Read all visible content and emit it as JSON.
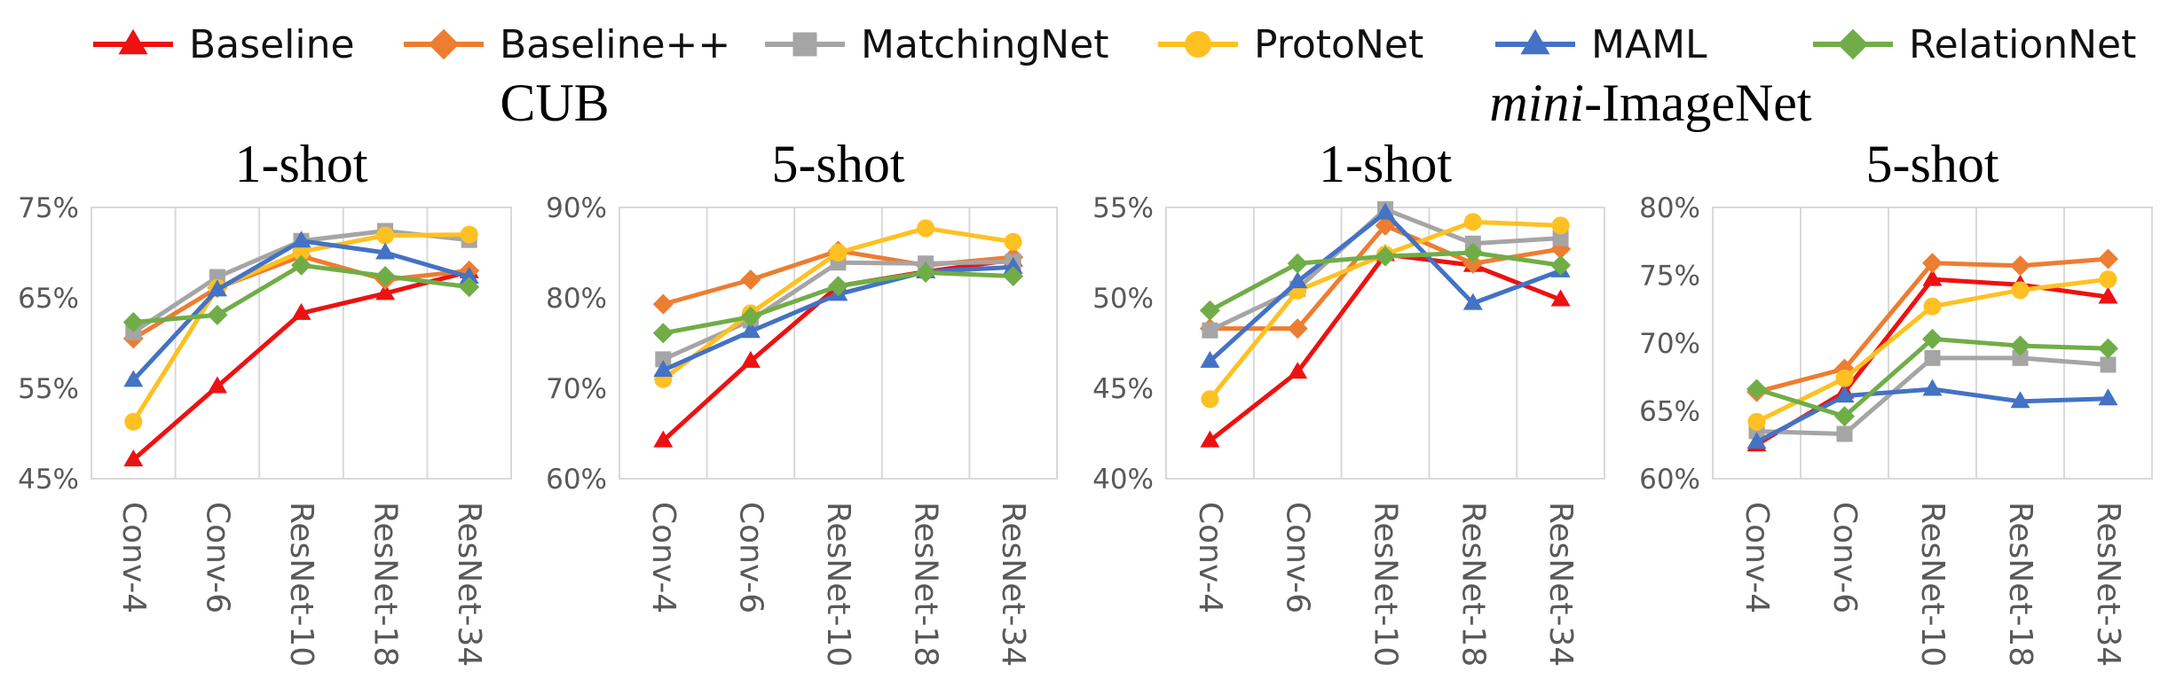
{
  "legend": [
    {
      "name": "Baseline",
      "color": "#ee1111",
      "marker": "triangle"
    },
    {
      "name": "Baseline++",
      "color": "#ed7d31",
      "marker": "diamond"
    },
    {
      "name": "MatchingNet",
      "color": "#a5a5a5",
      "marker": "square"
    },
    {
      "name": "ProtoNet",
      "color": "#ffc021",
      "marker": "circle"
    },
    {
      "name": "MAML",
      "color": "#4472c4",
      "marker": "triangle"
    },
    {
      "name": "RelationNet",
      "color": "#70ad47",
      "marker": "diamond"
    }
  ],
  "groups": [
    {
      "title": "CUB",
      "title_italic": "",
      "title_rest": "CUB"
    },
    {
      "title": "mini-ImageNet",
      "title_italic": "mini",
      "title_rest": "-ImageNet"
    }
  ],
  "chart_data": [
    {
      "type": "line",
      "group": "CUB",
      "title": "1-shot",
      "categories": [
        "Conv-4",
        "Conv-6",
        "ResNet-10",
        "ResNet-18",
        "ResNet-34"
      ],
      "ylim": [
        45,
        75
      ],
      "yticks": [
        45,
        55,
        65,
        75
      ],
      "ytick_labels": [
        "45%",
        "55%",
        "65%",
        "75%"
      ],
      "grid": "vertical",
      "series": [
        {
          "name": "Baseline",
          "values": [
            47.1,
            55.2,
            63.3,
            65.5,
            67.9
          ]
        },
        {
          "name": "Baseline++",
          "values": [
            60.5,
            66.1,
            69.6,
            67.0,
            68.0
          ]
        },
        {
          "name": "MatchingNet",
          "values": [
            61.2,
            67.3,
            71.3,
            72.4,
            71.4
          ]
        },
        {
          "name": "ProtoNet",
          "values": [
            51.3,
            66.1,
            70.1,
            71.9,
            72.0
          ]
        },
        {
          "name": "MAML",
          "values": [
            55.9,
            65.9,
            71.3,
            70.0,
            67.3
          ]
        },
        {
          "name": "RelationNet",
          "values": [
            62.3,
            63.1,
            68.6,
            67.4,
            66.2
          ]
        }
      ]
    },
    {
      "type": "line",
      "group": "CUB",
      "title": "5-shot",
      "categories": [
        "Conv-4",
        "Conv-6",
        "ResNet-10",
        "ResNet-18",
        "ResNet-34"
      ],
      "ylim": [
        60,
        90
      ],
      "yticks": [
        60,
        70,
        80,
        90
      ],
      "ytick_labels": [
        "60%",
        "70%",
        "80%",
        "90%"
      ],
      "grid": "vertical",
      "series": [
        {
          "name": "Baseline",
          "values": [
            64.2,
            73.0,
            81.3,
            82.9,
            84.2
          ]
        },
        {
          "name": "Baseline++",
          "values": [
            79.3,
            82.0,
            85.2,
            83.6,
            84.5
          ]
        },
        {
          "name": "MatchingNet",
          "values": [
            73.2,
            77.5,
            83.9,
            83.8,
            84.0
          ]
        },
        {
          "name": "ProtoNet",
          "values": [
            71.0,
            78.3,
            85.0,
            87.7,
            86.2
          ]
        },
        {
          "name": "MAML",
          "values": [
            72.0,
            76.3,
            80.4,
            82.9,
            83.4
          ]
        },
        {
          "name": "RelationNet",
          "values": [
            76.1,
            77.9,
            81.3,
            82.8,
            82.4
          ]
        }
      ]
    },
    {
      "type": "line",
      "group": "mini-ImageNet",
      "title": "1-shot",
      "categories": [
        "Conv-4",
        "Conv-6",
        "ResNet-10",
        "ResNet-18",
        "ResNet-34"
      ],
      "ylim": [
        40,
        55
      ],
      "yticks": [
        40,
        45,
        50,
        55
      ],
      "ytick_labels": [
        "40%",
        "45%",
        "50%",
        "55%"
      ],
      "grid": "vertical",
      "series": [
        {
          "name": "Baseline",
          "values": [
            42.1,
            45.9,
            52.4,
            51.8,
            49.9
          ]
        },
        {
          "name": "Baseline++",
          "values": [
            48.3,
            48.3,
            54.0,
            51.9,
            52.7
          ]
        },
        {
          "name": "MatchingNet",
          "values": [
            48.2,
            50.5,
            54.9,
            53.0,
            53.3
          ]
        },
        {
          "name": "ProtoNet",
          "values": [
            44.4,
            50.4,
            52.4,
            54.2,
            54.0
          ]
        },
        {
          "name": "MAML",
          "values": [
            46.5,
            50.9,
            54.7,
            49.7,
            51.5
          ]
        },
        {
          "name": "RelationNet",
          "values": [
            49.3,
            51.9,
            52.3,
            52.5,
            51.8
          ]
        }
      ]
    },
    {
      "type": "line",
      "group": "mini-ImageNet",
      "title": "5-shot",
      "categories": [
        "Conv-4",
        "Conv-6",
        "ResNet-10",
        "ResNet-18",
        "ResNet-34"
      ],
      "ylim": [
        60,
        80
      ],
      "yticks": [
        60,
        65,
        70,
        75,
        80
      ],
      "ytick_labels": [
        "60%",
        "65%",
        "70%",
        "75%",
        "80%"
      ],
      "grid": "vertical",
      "series": [
        {
          "name": "Baseline",
          "values": [
            62.5,
            66.4,
            74.7,
            74.3,
            73.4
          ]
        },
        {
          "name": "Baseline++",
          "values": [
            66.4,
            68.1,
            75.9,
            75.7,
            76.2
          ]
        },
        {
          "name": "MatchingNet",
          "values": [
            63.5,
            63.3,
            68.9,
            68.9,
            68.4
          ]
        },
        {
          "name": "ProtoNet",
          "values": [
            64.2,
            67.4,
            72.7,
            73.9,
            74.7
          ]
        },
        {
          "name": "MAML",
          "values": [
            62.7,
            66.1,
            66.6,
            65.7,
            65.9
          ]
        },
        {
          "name": "RelationNet",
          "values": [
            66.6,
            64.6,
            70.3,
            69.8,
            69.6
          ]
        }
      ]
    }
  ]
}
